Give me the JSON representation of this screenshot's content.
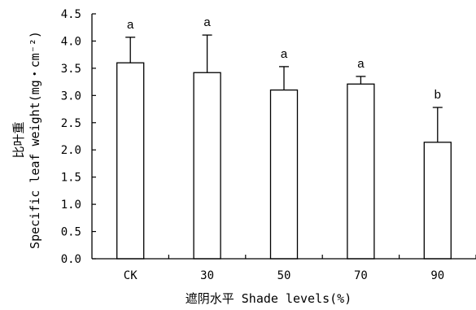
{
  "chart_data": {
    "type": "bar",
    "categories": [
      "CK",
      "30",
      "50",
      "70",
      "90"
    ],
    "values": [
      3.6,
      3.42,
      3.1,
      3.21,
      2.14
    ],
    "error_upper": [
      0.47,
      0.69,
      0.43,
      0.14,
      0.64
    ],
    "significance_labels": [
      "a",
      "a",
      "a",
      "a",
      "b"
    ],
    "xlabel": "遮阴水平 Shade levels(%)",
    "ylabel_cn": "比叶重",
    "ylabel_en": "Specific leaf weight(mg・cm⁻²)",
    "ylim": [
      0,
      4.5
    ],
    "yticks": [
      "0.0",
      "0.5",
      "1.0",
      "1.5",
      "2.0",
      "2.5",
      "3.0",
      "3.5",
      "4.0",
      "4.5"
    ],
    "grid": false,
    "bar_color": "#ffffff",
    "stroke_color": "#000000"
  }
}
